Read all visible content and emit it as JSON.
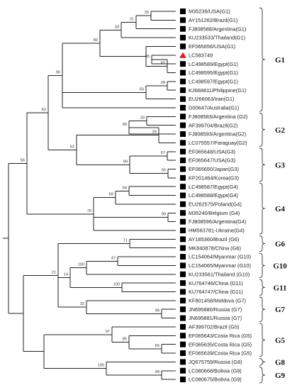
{
  "colors": {
    "line": "#222222",
    "marker": "#000000",
    "query_marker": "#e8161b"
  },
  "taxa": [
    {
      "label": "M35239/USA(G1)",
      "marker": "square"
    },
    {
      "label": "AY151262/Brazil(G1)",
      "marker": "square"
    },
    {
      "label": "FJ808588/Argentina(G1)",
      "marker": "square"
    },
    {
      "label": "KU233533/Thailand(G1)",
      "marker": "square"
    },
    {
      "label": "EF065656/USA(G1)",
      "marker": "square"
    },
    {
      "label": "LC583749",
      "marker": "triangle"
    },
    {
      "label": "LC498589/Egypt(G1)",
      "marker": "square"
    },
    {
      "label": "LC498595/Egypt(G1)",
      "marker": "square"
    },
    {
      "label": "LC498597/Egypt(G1)",
      "marker": "square"
    },
    {
      "label": "KJ668811/Philippine(G1)",
      "marker": "square"
    },
    {
      "label": "EU266063/Iran(G1)",
      "marker": "square"
    },
    {
      "label": "D00647/Australia(G1)",
      "marker": "square"
    },
    {
      "label": "FJ808583/Argentina (G2)",
      "marker": "square"
    },
    {
      "label": "AF399704/Brazil(G2)",
      "marker": "square"
    },
    {
      "label": "FJ808593/Argentina(G2)",
      "marker": "square"
    },
    {
      "label": "LC075557/Paraguay(G2)",
      "marker": "square"
    },
    {
      "label": "EF065648/USA(G3)",
      "marker": "square"
    },
    {
      "label": "EF065647/USA(G3)",
      "marker": "square"
    },
    {
      "label": "EF065650/Japan(G3)",
      "marker": "square"
    },
    {
      "label": "KP201464/Korea(G3)",
      "marker": "square"
    },
    {
      "label": "LC498587/Egypt(G4)",
      "marker": "square"
    },
    {
      "label": "LC498588/Egypt(G4)",
      "marker": "square"
    },
    {
      "label": "EU262575/Poland(G4)",
      "marker": "square"
    },
    {
      "label": "M35240/Belgium (G4)",
      "marker": "square"
    },
    {
      "label": "FJ808596/Argentina(G4)",
      "marker": "square"
    },
    {
      "label": "HM563781-Ukraine(G4)",
      "marker": "square"
    },
    {
      "label": "AY185360/Brazil (G6)",
      "marker": "square"
    },
    {
      "label": "MK840878/China (G6)",
      "marker": "square"
    },
    {
      "label": "LC154064/Myanmar (G10)",
      "marker": "square"
    },
    {
      "label": "LC154065/Myanmar (G10)",
      "marker": "square"
    },
    {
      "label": "KU233561/Thailand (G10)",
      "marker": "square"
    },
    {
      "label": "KU764746/China (G11)",
      "marker": "square"
    },
    {
      "label": "KU764747/China (G11)",
      "marker": "square"
    },
    {
      "label": "KF801458/Moldova (G7)",
      "marker": "square"
    },
    {
      "label": "JN695880/Russia (G7)",
      "marker": "square"
    },
    {
      "label": "JN695881/Russia (G7)",
      "marker": "square"
    },
    {
      "label": "AF399702/Brazil (G5)",
      "marker": "square"
    },
    {
      "label": "EF065643/Costa Rica (G5)",
      "marker": "square"
    },
    {
      "label": "EF065635/Costa Rica (G5)",
      "marker": "square"
    },
    {
      "label": "EF065639/Costa Rica (G5)",
      "marker": "square"
    },
    {
      "label": "JQ675759/Russia (G8)",
      "marker": "square"
    },
    {
      "label": "LC080668/Bolivia (G9)",
      "marker": "square"
    },
    {
      "label": "LC080675/Bolivia (G9)",
      "marker": "square"
    }
  ],
  "bootstrap": [
    "25",
    "21",
    "33",
    "85",
    "82",
    "40",
    "28",
    "50",
    "96",
    "33",
    "99",
    "29",
    "61",
    "67",
    "99",
    "55",
    "62",
    "94",
    "69",
    "70",
    "99",
    "56",
    "71",
    "21",
    "47",
    "100",
    "100",
    "14",
    "32",
    "99",
    "97",
    "65",
    "85",
    "100",
    "99"
  ],
  "groups": [
    "G1",
    "G2",
    "G3",
    "G4",
    "G6",
    "G10",
    "G11",
    "G7",
    "G5",
    "G8",
    "G9"
  ]
}
